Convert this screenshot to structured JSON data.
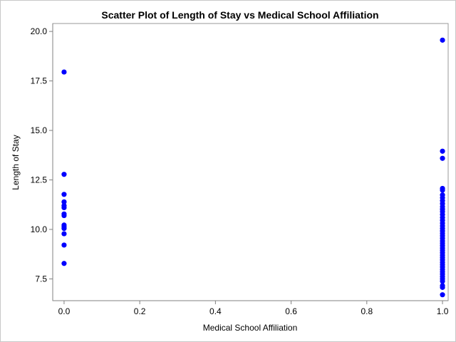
{
  "chart_data": {
    "type": "scatter",
    "title": "Scatter Plot of Length of Stay vs Medical School Affiliation",
    "xlabel": "Medical School Affiliation",
    "ylabel": "Length of Stay",
    "xlim": [
      -0.03,
      1.015
    ],
    "ylim": [
      6.4,
      20.4
    ],
    "x_ticks": [
      0.0,
      0.2,
      0.4,
      0.6,
      0.8,
      1.0
    ],
    "x_tick_labels": [
      "0.0",
      "0.2",
      "0.4",
      "0.6",
      "0.8",
      "1.0"
    ],
    "y_ticks": [
      7.5,
      10.0,
      12.5,
      15.0,
      17.5,
      20.0
    ],
    "y_tick_labels": [
      "7.5",
      "10.0",
      "12.5",
      "15.0",
      "17.5",
      "20.0"
    ],
    "grid": false,
    "marker_color": "#0000ff",
    "points": [
      [
        0,
        17.95
      ],
      [
        0,
        12.78
      ],
      [
        0,
        11.77
      ],
      [
        0,
        11.39
      ],
      [
        0,
        11.2
      ],
      [
        0,
        11.1
      ],
      [
        0,
        10.78
      ],
      [
        0,
        10.7
      ],
      [
        0,
        10.22
      ],
      [
        0,
        10.13
      ],
      [
        0,
        10.05
      ],
      [
        0,
        9.78
      ],
      [
        0,
        9.21
      ],
      [
        0,
        8.28
      ],
      [
        1,
        19.56
      ],
      [
        1,
        13.95
      ],
      [
        1,
        13.59
      ],
      [
        1,
        12.07
      ],
      [
        1,
        11.98
      ],
      [
        1,
        11.74
      ],
      [
        1,
        11.6
      ],
      [
        1,
        11.45
      ],
      [
        1,
        11.3
      ],
      [
        1,
        11.15
      ],
      [
        1,
        11.02
      ],
      [
        1,
        10.9
      ],
      [
        1,
        10.75
      ],
      [
        1,
        10.6
      ],
      [
        1,
        10.46
      ],
      [
        1,
        10.32
      ],
      [
        1,
        10.18
      ],
      [
        1,
        10.05
      ],
      [
        1,
        9.92
      ],
      [
        1,
        9.8
      ],
      [
        1,
        9.68
      ],
      [
        1,
        9.55
      ],
      [
        1,
        9.42
      ],
      [
        1,
        9.3
      ],
      [
        1,
        9.18
      ],
      [
        1,
        9.06
      ],
      [
        1,
        8.94
      ],
      [
        1,
        8.82
      ],
      [
        1,
        8.7
      ],
      [
        1,
        8.58
      ],
      [
        1,
        8.46
      ],
      [
        1,
        8.34
      ],
      [
        1,
        8.22
      ],
      [
        1,
        8.1
      ],
      [
        1,
        7.98
      ],
      [
        1,
        7.86
      ],
      [
        1,
        7.74
      ],
      [
        1,
        7.62
      ],
      [
        1,
        7.5
      ],
      [
        1,
        7.38
      ],
      [
        1,
        7.16
      ],
      [
        1,
        7.07
      ],
      [
        1,
        6.7
      ]
    ]
  }
}
